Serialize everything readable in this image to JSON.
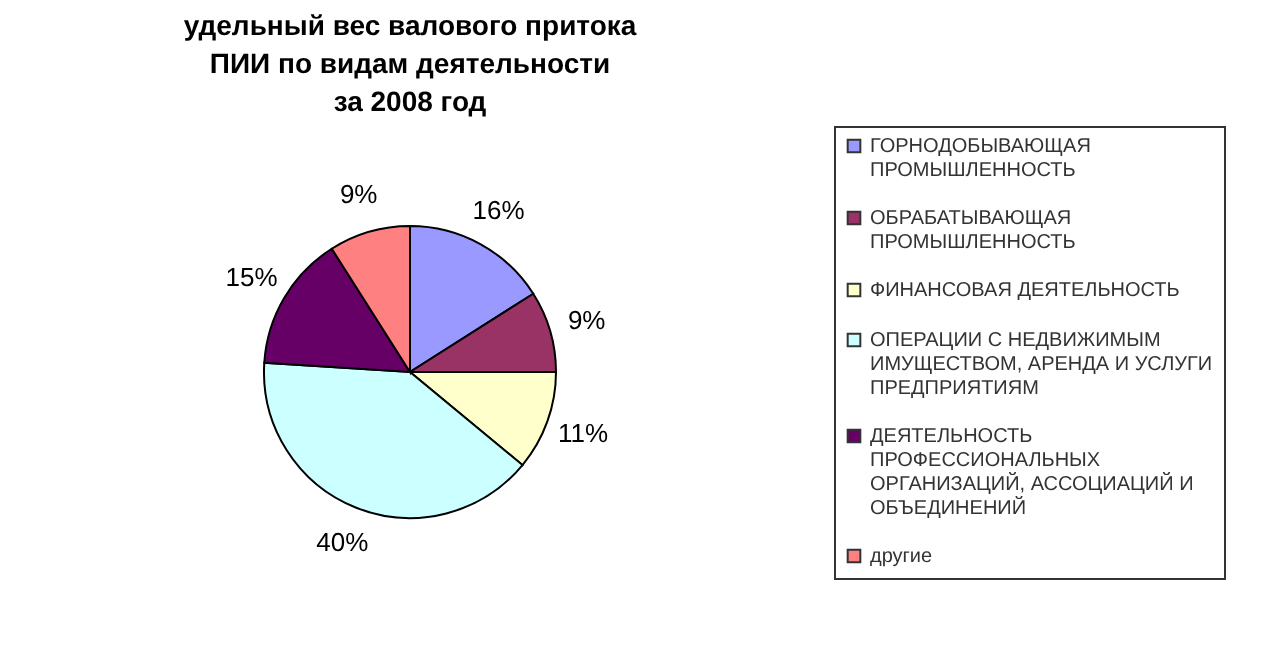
{
  "chart_data": {
    "type": "pie",
    "title": "удельный вес валового притока\nПИИ по видам деятельности\nза 2008 год",
    "categories": [
      "ГОРНОДОБЫВАЮЩАЯ ПРОМЫШЛЕННОСТЬ",
      "ОБРАБАТЫВАЮЩАЯ ПРОМЫШЛЕННОСТЬ",
      "ФИНАНСОВАЯ ДЕЯТЕЛЬНОСТЬ",
      "ОПЕРАЦИИ С НЕДВИЖИМЫМ ИМУЩЕСТВОМ, АРЕНДА И УСЛУГИ ПРЕДПРИЯТИЯМ",
      "ДЕЯТЕЛЬНОСТЬ ПРОФЕССИОНАЛЬНЫХ ОРГАНИЗАЦИЙ, АССОЦИАЦИЙ И ОБЪЕДИНЕНИЙ",
      "другие"
    ],
    "values": [
      16,
      9,
      11,
      40,
      15,
      9
    ],
    "colors": [
      "#9999ff",
      "#993366",
      "#ffffcc",
      "#ccffff",
      "#660066",
      "#ff8080"
    ],
    "value_labels": [
      "16%",
      "9%",
      "11%",
      "40%",
      "15%",
      "9%"
    ],
    "legend": "right"
  }
}
